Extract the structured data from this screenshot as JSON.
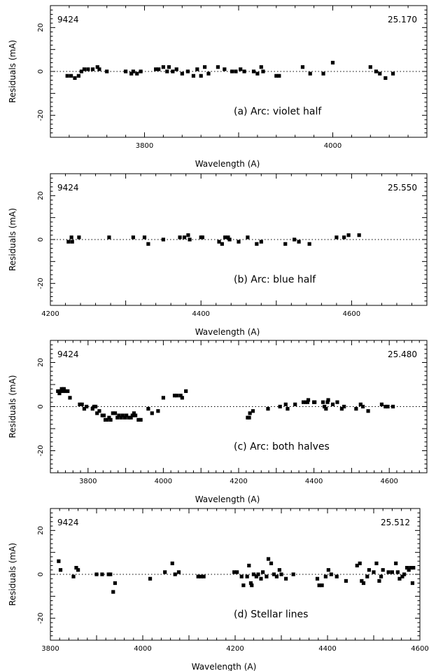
{
  "chart_data": [
    {
      "type": "scatter",
      "star": "9424",
      "value": "25.170",
      "annotation": "(a) Arc: violet half",
      "xlabel": "Wavelength (A)",
      "ylabel": "Residuals (mA)",
      "xlim": [
        3700,
        4100
      ],
      "ylim": [
        -30,
        30
      ],
      "xticks": [
        3800,
        4000
      ],
      "yticks": [
        20,
        0,
        -20
      ],
      "points": [
        [
          3718,
          -2
        ],
        [
          3722,
          -2
        ],
        [
          3726,
          -3
        ],
        [
          3730,
          -2
        ],
        [
          3733,
          0
        ],
        [
          3736,
          1
        ],
        [
          3740,
          1
        ],
        [
          3745,
          1
        ],
        [
          3750,
          2
        ],
        [
          3752,
          1
        ],
        [
          3760,
          0
        ],
        [
          3780,
          0
        ],
        [
          3786,
          -1
        ],
        [
          3788,
          0
        ],
        [
          3792,
          -1
        ],
        [
          3796,
          0
        ],
        [
          3812,
          1
        ],
        [
          3815,
          1
        ],
        [
          3820,
          2
        ],
        [
          3824,
          0
        ],
        [
          3826,
          2
        ],
        [
          3830,
          0
        ],
        [
          3834,
          1
        ],
        [
          3840,
          -1
        ],
        [
          3846,
          0
        ],
        [
          3852,
          -2
        ],
        [
          3856,
          1
        ],
        [
          3860,
          -2
        ],
        [
          3864,
          2
        ],
        [
          3868,
          -1
        ],
        [
          3878,
          2
        ],
        [
          3885,
          1
        ],
        [
          3893,
          0
        ],
        [
          3897,
          0
        ],
        [
          3902,
          1
        ],
        [
          3906,
          0
        ],
        [
          3916,
          0
        ],
        [
          3920,
          -1
        ],
        [
          3924,
          2
        ],
        [
          3926,
          0
        ],
        [
          3940,
          -2
        ],
        [
          3943,
          -2
        ],
        [
          3968,
          2
        ],
        [
          3976,
          -1
        ],
        [
          3990,
          -1
        ],
        [
          4000,
          4
        ],
        [
          4040,
          2
        ],
        [
          4046,
          0
        ],
        [
          4050,
          -1
        ],
        [
          4056,
          -3
        ],
        [
          4064,
          -1
        ]
      ]
    },
    {
      "type": "scatter",
      "star": "9424",
      "value": "25.550",
      "annotation": "(b) Arc: blue half",
      "xlabel": "Wavelength (A)",
      "ylabel": "Residuals (mA)",
      "xlim": [
        4200,
        4700
      ],
      "ylim": [
        -30,
        30
      ],
      "xticks": [
        4200,
        4400,
        4600
      ],
      "yticks": [
        20,
        0,
        -20
      ],
      "points": [
        [
          4224,
          -1
        ],
        [
          4228,
          1
        ],
        [
          4229,
          -1
        ],
        [
          4238,
          1
        ],
        [
          4278,
          1
        ],
        [
          4310,
          1
        ],
        [
          4325,
          1
        ],
        [
          4330,
          -2
        ],
        [
          4350,
          0
        ],
        [
          4372,
          1
        ],
        [
          4378,
          1
        ],
        [
          4383,
          2
        ],
        [
          4385,
          0
        ],
        [
          4400,
          1
        ],
        [
          4402,
          1
        ],
        [
          4424,
          -1
        ],
        [
          4428,
          -2
        ],
        [
          4432,
          1
        ],
        [
          4436,
          1
        ],
        [
          4438,
          0
        ],
        [
          4450,
          -1
        ],
        [
          4462,
          1
        ],
        [
          4474,
          -2
        ],
        [
          4480,
          -1
        ],
        [
          4512,
          -2
        ],
        [
          4524,
          0
        ],
        [
          4530,
          -1
        ],
        [
          4544,
          -2
        ],
        [
          4580,
          1
        ],
        [
          4590,
          1
        ],
        [
          4596,
          2
        ],
        [
          4610,
          2
        ]
      ]
    },
    {
      "type": "scatter",
      "star": "9424",
      "value": "25.480",
      "annotation": "(c) Arc: both halves",
      "xlabel": "Wavelength (A)",
      "ylabel": "Residuals (mA)",
      "xlim": [
        3700,
        4700
      ],
      "ylim": [
        -30,
        30
      ],
      "xticks": [
        3800,
        4000,
        4200,
        4400,
        4600
      ],
      "yticks": [
        20,
        0,
        -20
      ],
      "points": [
        [
          3720,
          7
        ],
        [
          3724,
          6
        ],
        [
          3728,
          7
        ],
        [
          3730,
          8
        ],
        [
          3734,
          7
        ],
        [
          3736,
          8
        ],
        [
          3740,
          7
        ],
        [
          3746,
          7
        ],
        [
          3752,
          4
        ],
        [
          3778,
          1
        ],
        [
          3784,
          1
        ],
        [
          3790,
          -1
        ],
        [
          3796,
          0
        ],
        [
          3812,
          -1
        ],
        [
          3816,
          0
        ],
        [
          3820,
          0
        ],
        [
          3824,
          -3
        ],
        [
          3830,
          -2
        ],
        [
          3838,
          -4
        ],
        [
          3842,
          -4
        ],
        [
          3846,
          -6
        ],
        [
          3850,
          -6
        ],
        [
          3856,
          -5
        ],
        [
          3860,
          -6
        ],
        [
          3866,
          -3
        ],
        [
          3872,
          -3
        ],
        [
          3878,
          -5
        ],
        [
          3882,
          -4
        ],
        [
          3888,
          -5
        ],
        [
          3892,
          -4
        ],
        [
          3898,
          -5
        ],
        [
          3902,
          -4
        ],
        [
          3908,
          -5
        ],
        [
          3914,
          -5
        ],
        [
          3918,
          -4
        ],
        [
          3922,
          -3
        ],
        [
          3926,
          -4
        ],
        [
          3934,
          -6
        ],
        [
          3940,
          -6
        ],
        [
          3960,
          -1
        ],
        [
          3970,
          -3
        ],
        [
          3986,
          -2
        ],
        [
          4000,
          4
        ],
        [
          4030,
          5
        ],
        [
          4036,
          5
        ],
        [
          4046,
          5
        ],
        [
          4050,
          4
        ],
        [
          4060,
          7
        ],
        [
          4224,
          -5
        ],
        [
          4228,
          -5
        ],
        [
          4230,
          -3
        ],
        [
          4238,
          -2
        ],
        [
          4278,
          -1
        ],
        [
          4310,
          0
        ],
        [
          4325,
          1
        ],
        [
          4330,
          -1
        ],
        [
          4350,
          1
        ],
        [
          4372,
          2
        ],
        [
          4378,
          2
        ],
        [
          4383,
          2
        ],
        [
          4385,
          3
        ],
        [
          4400,
          2
        ],
        [
          4402,
          2
        ],
        [
          4424,
          2
        ],
        [
          4428,
          0
        ],
        [
          4432,
          -1
        ],
        [
          4436,
          2
        ],
        [
          4438,
          3
        ],
        [
          4450,
          1
        ],
        [
          4462,
          2
        ],
        [
          4474,
          -1
        ],
        [
          4480,
          0
        ],
        [
          4512,
          -1
        ],
        [
          4524,
          1
        ],
        [
          4530,
          0
        ],
        [
          4544,
          -2
        ],
        [
          4580,
          1
        ],
        [
          4590,
          0
        ],
        [
          4596,
          0
        ],
        [
          4610,
          0
        ]
      ]
    },
    {
      "type": "scatter",
      "star": "9424",
      "value": "25.512",
      "annotation": "(d) Stellar lines",
      "xlabel": "Wavelength (A)",
      "ylabel": "Residuals (mA)",
      "xlim": [
        3800,
        4600
      ],
      "ylim": [
        -30,
        30
      ],
      "xticks": [
        3800,
        4000,
        4200,
        4400,
        4600
      ],
      "yticks": [
        20,
        0,
        -20
      ],
      "points": [
        [
          3818,
          6
        ],
        [
          3822,
          2
        ],
        [
          3850,
          -1
        ],
        [
          3856,
          3
        ],
        [
          3860,
          2
        ],
        [
          3900,
          0
        ],
        [
          3912,
          0
        ],
        [
          3926,
          0
        ],
        [
          3930,
          0
        ],
        [
          3936,
          -8
        ],
        [
          3940,
          -4
        ],
        [
          4016,
          -2
        ],
        [
          4048,
          1
        ],
        [
          4064,
          5
        ],
        [
          4070,
          0
        ],
        [
          4078,
          1
        ],
        [
          4120,
          -1
        ],
        [
          4126,
          -1
        ],
        [
          4132,
          -1
        ],
        [
          4198,
          1
        ],
        [
          4204,
          1
        ],
        [
          4214,
          -1
        ],
        [
          4218,
          -5
        ],
        [
          4226,
          -1
        ],
        [
          4230,
          4
        ],
        [
          4234,
          -4
        ],
        [
          4236,
          -5
        ],
        [
          4240,
          0
        ],
        [
          4246,
          -1
        ],
        [
          4250,
          0
        ],
        [
          4256,
          -2
        ],
        [
          4260,
          1
        ],
        [
          4268,
          -1
        ],
        [
          4272,
          7
        ],
        [
          4278,
          5
        ],
        [
          4284,
          0
        ],
        [
          4290,
          -1
        ],
        [
          4296,
          2
        ],
        [
          4300,
          0
        ],
        [
          4310,
          -2
        ],
        [
          4326,
          0
        ],
        [
          4378,
          -2
        ],
        [
          4382,
          -5
        ],
        [
          4388,
          -5
        ],
        [
          4396,
          -1
        ],
        [
          4402,
          2
        ],
        [
          4408,
          0
        ],
        [
          4420,
          -1
        ],
        [
          4440,
          -3
        ],
        [
          4464,
          4
        ],
        [
          4470,
          5
        ],
        [
          4474,
          -3
        ],
        [
          4478,
          -4
        ],
        [
          4486,
          -1
        ],
        [
          4490,
          2
        ],
        [
          4500,
          1
        ],
        [
          4506,
          5
        ],
        [
          4512,
          -3
        ],
        [
          4516,
          -1
        ],
        [
          4520,
          2
        ],
        [
          4532,
          1
        ],
        [
          4540,
          1
        ],
        [
          4548,
          5
        ],
        [
          4552,
          1
        ],
        [
          4556,
          -2
        ],
        [
          4562,
          -1
        ],
        [
          4566,
          0
        ],
        [
          4572,
          3
        ],
        [
          4576,
          2
        ],
        [
          4580,
          3
        ],
        [
          4584,
          -4
        ],
        [
          4586,
          3
        ]
      ]
    }
  ]
}
